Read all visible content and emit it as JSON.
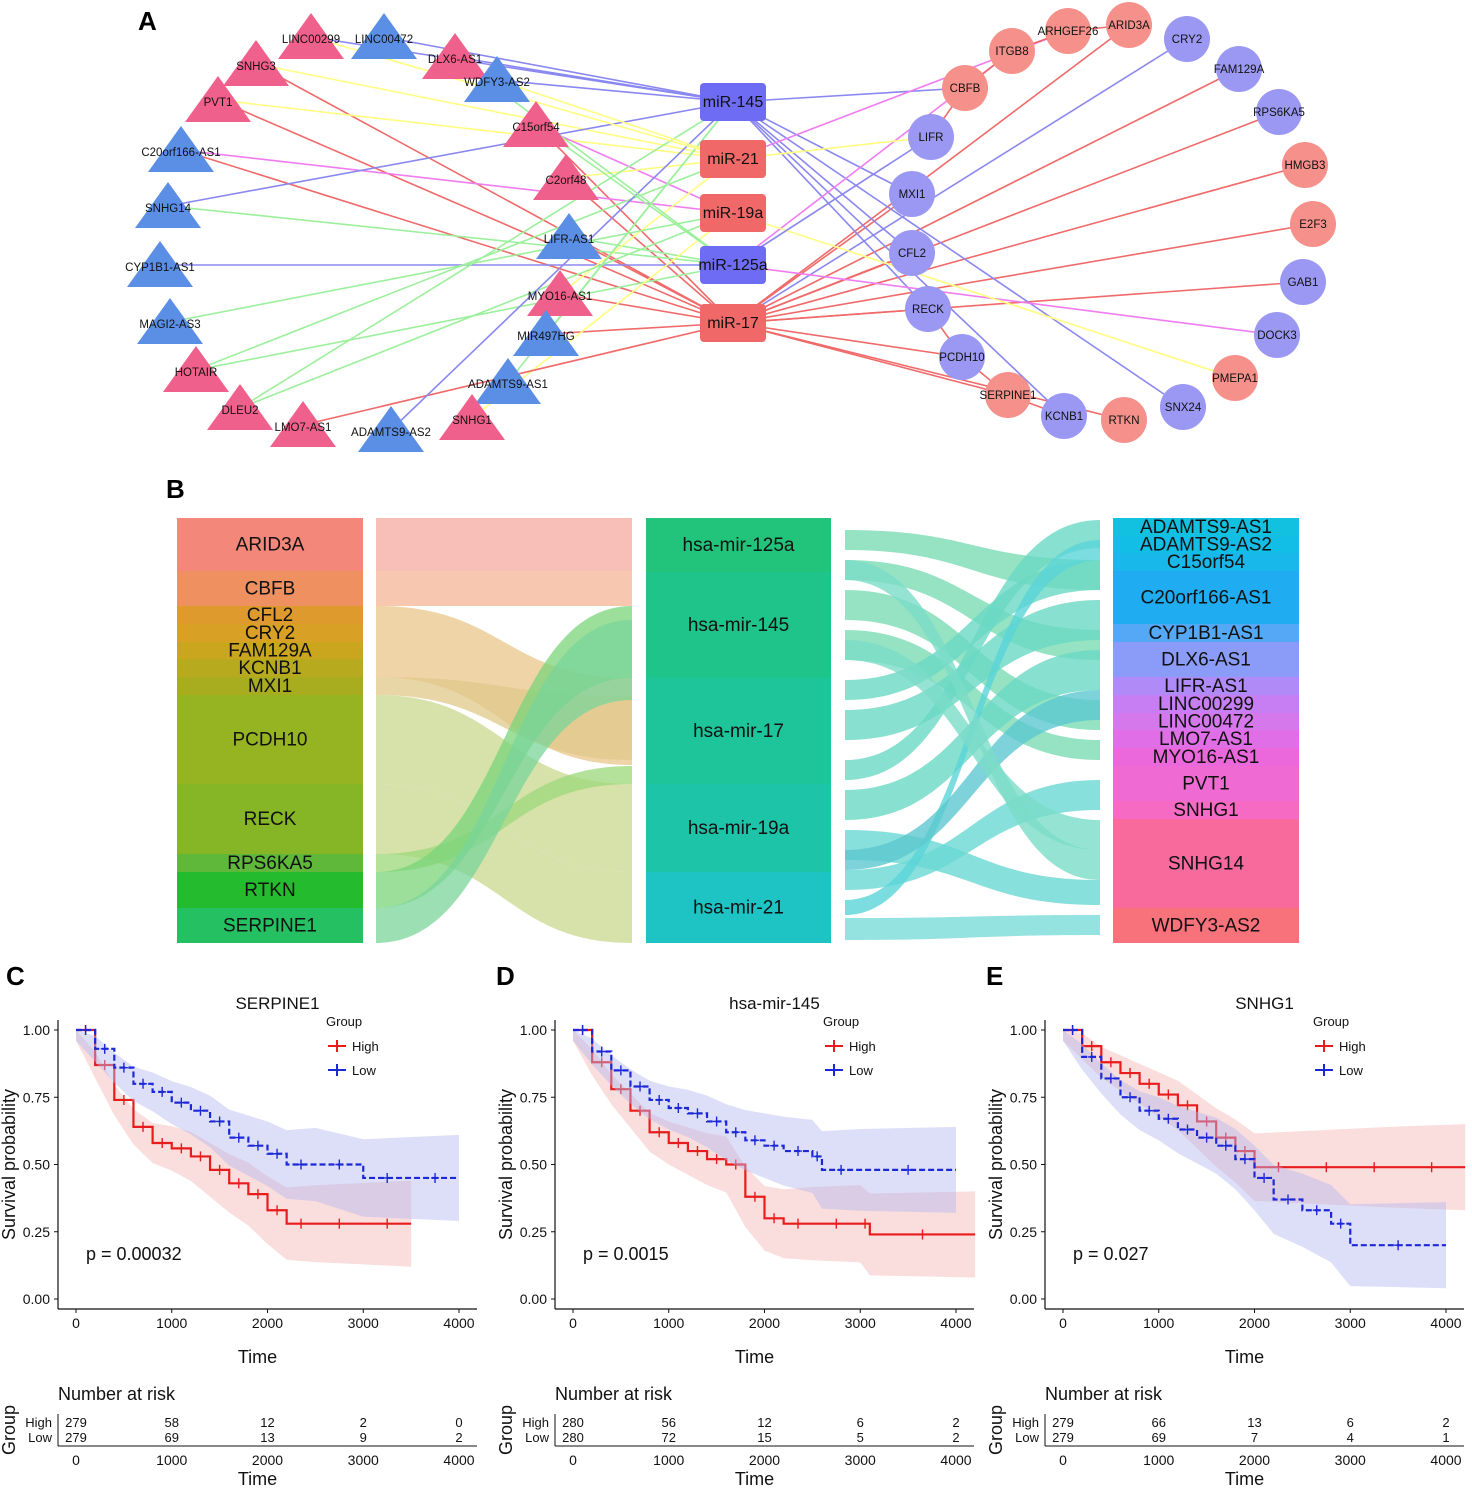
{
  "panels": {
    "a": "A",
    "b": "B",
    "c": "C",
    "d": "D",
    "e": "E"
  },
  "network": {
    "colors": {
      "pink": "#f0608c",
      "blue": "#5b8fe6",
      "mir_blue": "#6e6cf4",
      "mir_red": "#f06868",
      "salmon": "#f5908a",
      "lav": "#9a98f2"
    },
    "lncrnas": [
      {
        "name": "LINC00299",
        "color": "pink"
      },
      {
        "name": "LINC00472",
        "color": "blue"
      },
      {
        "name": "DLX6-AS1",
        "color": "pink"
      },
      {
        "name": "SNHG3",
        "color": "pink"
      },
      {
        "name": "WDFY3-AS2",
        "color": "blue"
      },
      {
        "name": "PVT1",
        "color": "pink"
      },
      {
        "name": "C15orf54",
        "color": "pink"
      },
      {
        "name": "C20orf166-AS1",
        "color": "blue"
      },
      {
        "name": "C2orf48",
        "color": "pink"
      },
      {
        "name": "SNHG14",
        "color": "blue"
      },
      {
        "name": "LIFR-AS1",
        "color": "blue"
      },
      {
        "name": "CYP1B1-AS1",
        "color": "blue"
      },
      {
        "name": "MYO16-AS1",
        "color": "pink"
      },
      {
        "name": "MAGI2-AS3",
        "color": "blue"
      },
      {
        "name": "MIR497HG",
        "color": "blue"
      },
      {
        "name": "HOTAIR",
        "color": "pink"
      },
      {
        "name": "ADAMTS9-AS1",
        "color": "blue"
      },
      {
        "name": "DLEU2",
        "color": "pink"
      },
      {
        "name": "SNHG1",
        "color": "pink"
      },
      {
        "name": "LMO7-AS1",
        "color": "pink"
      },
      {
        "name": "ADAMTS9-AS2",
        "color": "blue"
      }
    ],
    "mirnas": [
      {
        "name": "miR-145",
        "color": "mir_blue"
      },
      {
        "name": "miR-21",
        "color": "mir_red"
      },
      {
        "name": "miR-19a",
        "color": "mir_red"
      },
      {
        "name": "miR-125a",
        "color": "mir_blue"
      },
      {
        "name": "miR-17",
        "color": "mir_red"
      }
    ],
    "mrnas": [
      {
        "name": "ARID3A",
        "color": "salmon"
      },
      {
        "name": "ARHGEF26",
        "color": "salmon"
      },
      {
        "name": "CRY2",
        "color": "lav"
      },
      {
        "name": "ITGB8",
        "color": "salmon"
      },
      {
        "name": "FAM129A",
        "color": "lav"
      },
      {
        "name": "CBFB",
        "color": "salmon"
      },
      {
        "name": "RPS6KA5",
        "color": "lav"
      },
      {
        "name": "LIFR",
        "color": "lav"
      },
      {
        "name": "HMGB3",
        "color": "salmon"
      },
      {
        "name": "MXI1",
        "color": "lav"
      },
      {
        "name": "E2F3",
        "color": "salmon"
      },
      {
        "name": "CFL2",
        "color": "lav"
      },
      {
        "name": "GAB1",
        "color": "lav"
      },
      {
        "name": "RECK",
        "color": "lav"
      },
      {
        "name": "DOCK3",
        "color": "lav"
      },
      {
        "name": "PCDH10",
        "color": "lav"
      },
      {
        "name": "PMEPA1",
        "color": "salmon"
      },
      {
        "name": "SERPINE1",
        "color": "salmon"
      },
      {
        "name": "SNX24",
        "color": "lav"
      },
      {
        "name": "KCNB1",
        "color": "lav"
      },
      {
        "name": "RTKN",
        "color": "salmon"
      }
    ]
  },
  "sankey": {
    "left": [
      {
        "name": "ARID3A",
        "color": "#f2877a"
      },
      {
        "name": "CBFB",
        "color": "#ee9060"
      },
      {
        "name": "CFL2",
        "color": "#df9a2e"
      },
      {
        "name": "CRY2",
        "color": "#d8a024"
      },
      {
        "name": "FAM129A",
        "color": "#c9a61e"
      },
      {
        "name": "KCNB1",
        "color": "#b8aa1e"
      },
      {
        "name": "MXI1",
        "color": "#a8ad1f"
      },
      {
        "name": "PCDH10",
        "color": "#96b422"
      },
      {
        "name": "RECK",
        "color": "#86b526"
      },
      {
        "name": "RPS6KA5",
        "color": "#5fb83a"
      },
      {
        "name": "RTKN",
        "color": "#24bc2e"
      },
      {
        "name": "SERPINE1",
        "color": "#24c061"
      }
    ],
    "middle": [
      {
        "name": "hsa-mir-125a",
        "color": "#22c47c"
      },
      {
        "name": "hsa-mir-145",
        "color": "#1ec48a"
      },
      {
        "name": "hsa-mir-17",
        "color": "#1ec49a"
      },
      {
        "name": "hsa-mir-19a",
        "color": "#1ec4a8"
      },
      {
        "name": "hsa-mir-21",
        "color": "#1ec4c4"
      }
    ],
    "right": [
      {
        "name": "ADAMTS9-AS1",
        "color": "#12c0e0"
      },
      {
        "name": "ADAMTS9-AS2",
        "color": "#12bde6"
      },
      {
        "name": "C15orf54",
        "color": "#18b8ea"
      },
      {
        "name": "C20orf166-AS1",
        "color": "#20acf0"
      },
      {
        "name": "CYP1B1-AS1",
        "color": "#55a8f6"
      },
      {
        "name": "DLX6-AS1",
        "color": "#8a9cf8"
      },
      {
        "name": "LIFR-AS1",
        "color": "#b08af6"
      },
      {
        "name": "LINC00299",
        "color": "#c67ef2"
      },
      {
        "name": "LINC00472",
        "color": "#d478ec"
      },
      {
        "name": "LMO7-AS1",
        "color": "#e06ee6"
      },
      {
        "name": "MYO16-AS1",
        "color": "#ea68dc"
      },
      {
        "name": "PVT1",
        "color": "#f06ad4"
      },
      {
        "name": "SNHG1",
        "color": "#f66ac4"
      },
      {
        "name": "SNHG14",
        "color": "#f86a9c"
      },
      {
        "name": "WDFY3-AS2",
        "color": "#f8727c"
      }
    ]
  },
  "km": [
    {
      "title": "SERPINE1",
      "p_text": "p = 0.00032",
      "risk_high": [
        "279",
        "58",
        "12",
        "2",
        "0"
      ],
      "risk_low": [
        "279",
        "69",
        "13",
        "9",
        "2"
      ]
    },
    {
      "title": "hsa-mir-145",
      "p_text": "p = 0.0015",
      "risk_high": [
        "280",
        "56",
        "12",
        "6",
        "2"
      ],
      "risk_low": [
        "280",
        "72",
        "15",
        "5",
        "2"
      ]
    },
    {
      "title": "SNHG1",
      "p_text": "p = 0.027",
      "risk_high": [
        "279",
        "66",
        "13",
        "6",
        "2"
      ],
      "risk_low": [
        "279",
        "69",
        "7",
        "4",
        "1"
      ]
    }
  ],
  "km_common": {
    "ylabel": "Survival probability",
    "xlabel": "Time",
    "legend_title": "Group",
    "legend_high": "High",
    "legend_low": "Low",
    "yticks": [
      "0.00",
      "0.25",
      "0.50",
      "0.75",
      "1.00"
    ],
    "xticks": [
      "0",
      "1000",
      "2000",
      "3000",
      "4000"
    ],
    "risk_title": "Number at risk",
    "risk_group_axis": "Group",
    "high_color": "#e81c1c",
    "low_color": "#1c28d8"
  },
  "chart_data": [
    {
      "type": "line",
      "title": "SERPINE1",
      "xlabel": "Time",
      "ylabel": "Survival probability",
      "xlim": [
        0,
        4200
      ],
      "ylim": [
        0,
        1
      ],
      "series": [
        {
          "name": "High",
          "x": [
            0,
            200,
            400,
            600,
            800,
            1000,
            1200,
            1400,
            1600,
            1800,
            2000,
            2200,
            2500,
            3000,
            3500
          ],
          "y": [
            1.0,
            0.87,
            0.74,
            0.64,
            0.58,
            0.56,
            0.53,
            0.48,
            0.43,
            0.39,
            0.33,
            0.28,
            0.28,
            0.28,
            0.28
          ]
        },
        {
          "name": "Low",
          "x": [
            0,
            200,
            400,
            600,
            800,
            1000,
            1200,
            1400,
            1600,
            1800,
            2000,
            2200,
            2500,
            3000,
            3500,
            4000
          ],
          "y": [
            1.0,
            0.93,
            0.86,
            0.8,
            0.77,
            0.73,
            0.7,
            0.66,
            0.6,
            0.57,
            0.54,
            0.5,
            0.5,
            0.45,
            0.45,
            0.45
          ]
        }
      ]
    },
    {
      "type": "line",
      "title": "hsa-mir-145",
      "xlabel": "Time",
      "ylabel": "Survival probability",
      "xlim": [
        0,
        4200
      ],
      "ylim": [
        0,
        1
      ],
      "series": [
        {
          "name": "High",
          "x": [
            0,
            200,
            400,
            600,
            800,
            1000,
            1200,
            1400,
            1600,
            1800,
            2000,
            2200,
            2500,
            3000,
            3100,
            4200
          ],
          "y": [
            1.0,
            0.88,
            0.78,
            0.7,
            0.62,
            0.58,
            0.55,
            0.52,
            0.5,
            0.38,
            0.3,
            0.28,
            0.28,
            0.28,
            0.24,
            0.24
          ]
        },
        {
          "name": "Low",
          "x": [
            0,
            200,
            400,
            600,
            800,
            1000,
            1200,
            1400,
            1600,
            1800,
            2000,
            2200,
            2500,
            2600,
            3000,
            4000
          ],
          "y": [
            1.0,
            0.92,
            0.85,
            0.79,
            0.74,
            0.71,
            0.69,
            0.66,
            0.62,
            0.59,
            0.57,
            0.55,
            0.53,
            0.48,
            0.48,
            0.48
          ]
        }
      ]
    },
    {
      "type": "line",
      "title": "SNHG1",
      "xlabel": "Time",
      "ylabel": "Survival probability",
      "xlim": [
        0,
        4200
      ],
      "ylim": [
        0,
        1
      ],
      "series": [
        {
          "name": "High",
          "x": [
            0,
            200,
            400,
            600,
            800,
            1000,
            1200,
            1400,
            1600,
            1800,
            2000,
            2500,
            3000,
            3500,
            4200
          ],
          "y": [
            1.0,
            0.94,
            0.88,
            0.84,
            0.8,
            0.76,
            0.72,
            0.66,
            0.6,
            0.55,
            0.49,
            0.49,
            0.49,
            0.49,
            0.49
          ]
        },
        {
          "name": "Low",
          "x": [
            0,
            200,
            400,
            600,
            800,
            1000,
            1200,
            1400,
            1600,
            1800,
            2000,
            2200,
            2500,
            2800,
            3000,
            4000
          ],
          "y": [
            1.0,
            0.9,
            0.82,
            0.75,
            0.7,
            0.67,
            0.63,
            0.6,
            0.57,
            0.52,
            0.45,
            0.37,
            0.33,
            0.28,
            0.2,
            0.2
          ]
        }
      ]
    }
  ]
}
